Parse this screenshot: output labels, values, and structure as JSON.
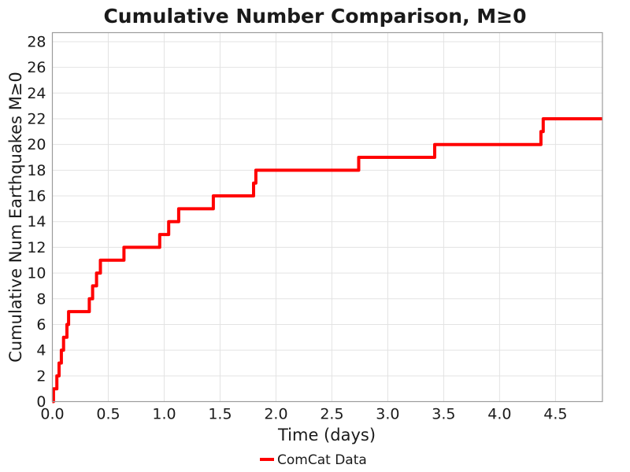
{
  "title": "Cumulative Number Comparison, M≥0",
  "chart_data": {
    "type": "line",
    "step_mode": "post",
    "title": "Cumulative Number Comparison, M≥0",
    "xlabel": "Time (days)",
    "ylabel": "Cumulative Num Earthquakes M≥0",
    "xlim": [
      0,
      4.92
    ],
    "ylim": [
      0,
      28.7
    ],
    "xticks": [
      0.0,
      0.5,
      1.0,
      1.5,
      2.0,
      2.5,
      3.0,
      3.5,
      4.0,
      4.5
    ],
    "xtick_labels": [
      "0.0",
      "0.5",
      "1.0",
      "1.5",
      "2.0",
      "2.5",
      "3.0",
      "3.5",
      "4.0",
      "4.5"
    ],
    "yticks": [
      0,
      2,
      4,
      6,
      8,
      10,
      12,
      14,
      16,
      18,
      20,
      22,
      24,
      26,
      28
    ],
    "ytick_labels": [
      "0",
      "2",
      "4",
      "6",
      "8",
      "10",
      "12",
      "14",
      "16",
      "18",
      "20",
      "22",
      "24",
      "26",
      "28"
    ],
    "grid": true,
    "grid_color": "#e3e3e3",
    "spine_color": "#9c9c9c",
    "legend_position": "bottom-center",
    "series": [
      {
        "name": "ComCat Data",
        "color": "#ff0000",
        "linewidth": 4,
        "start": [
          0,
          0
        ],
        "x_end": 4.92,
        "events": [
          [
            0.01,
            1
          ],
          [
            0.04,
            2
          ],
          [
            0.06,
            3
          ],
          [
            0.08,
            4
          ],
          [
            0.1,
            5
          ],
          [
            0.13,
            6
          ],
          [
            0.145,
            7
          ],
          [
            0.33,
            8
          ],
          [
            0.36,
            9
          ],
          [
            0.395,
            10
          ],
          [
            0.43,
            11
          ],
          [
            0.64,
            12
          ],
          [
            0.96,
            13
          ],
          [
            1.04,
            14
          ],
          [
            1.13,
            15
          ],
          [
            1.44,
            16
          ],
          [
            1.8,
            17
          ],
          [
            1.82,
            18
          ],
          [
            2.74,
            19
          ],
          [
            3.42,
            20
          ],
          [
            4.37,
            21
          ],
          [
            4.39,
            22
          ]
        ]
      }
    ]
  },
  "legend": {
    "entries": [
      {
        "label": "ComCat Data",
        "color": "#ff0000"
      }
    ]
  }
}
